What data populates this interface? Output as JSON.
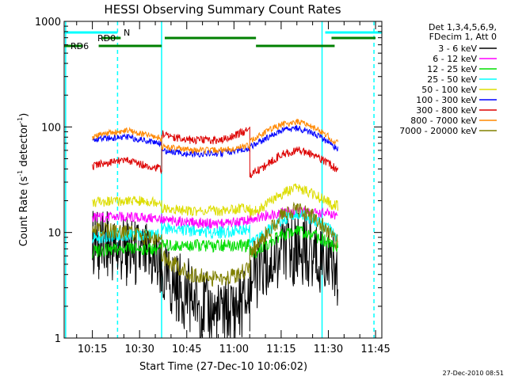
{
  "chart_data": {
    "type": "line",
    "title": "HESSI Observing Summary Count Rates",
    "xlabel": "Start Time (27-Dec-10 10:06:02)",
    "ylabel": "Count Rate (s",
    "ylabel_sup": "-1",
    "ylabel_mid": " detector",
    "ylabel_end": ")",
    "y_scale": "log",
    "ylim": [
      1,
      1000
    ],
    "xlim": [
      "10:06:02",
      "11:47:00"
    ],
    "x_ticks": [
      "10:15",
      "10:30",
      "10:45",
      "11:00",
      "11:15",
      "11:30",
      "11:45"
    ],
    "y_ticks": [
      "1",
      "10",
      "100",
      "1000"
    ],
    "legend_header": [
      "Det 1,3,4,5,6,9,",
      "FDecim 1, Att 0"
    ],
    "legend_position": "right",
    "x_minutes": [
      0,
      9,
      11,
      20,
      31,
      31.01,
      40,
      50,
      59,
      59.01,
      64,
      69,
      74,
      79,
      84,
      85,
      87,
      87.01,
      100
    ],
    "series": [
      {
        "name": "3 - 6 keV",
        "color": "#000000",
        "values": [
          null,
          8,
          7.5,
          6.5,
          5,
          3.8,
          2.5,
          1.5,
          2.5,
          3.5,
          5,
          6.5,
          7,
          6.5,
          5.5,
          5,
          4,
          null,
          null
        ]
      },
      {
        "name": "6 - 12 keV",
        "color": "#ff00ff",
        "values": [
          null,
          14,
          14,
          14,
          13.5,
          13,
          12.5,
          12,
          13,
          13.5,
          14.5,
          15.5,
          16,
          15.5,
          15,
          14.5,
          14,
          null,
          null
        ]
      },
      {
        "name": "12 - 25 keV",
        "color": "#00dd00",
        "values": [
          null,
          6.5,
          6.7,
          7,
          7,
          7.5,
          7.5,
          7.5,
          7.5,
          6,
          7.5,
          9.5,
          10.5,
          9.5,
          8,
          7.5,
          7,
          null,
          null
        ]
      },
      {
        "name": "25 - 50 keV",
        "color": "#00ffff",
        "values": [
          null,
          9,
          9,
          9.5,
          9.5,
          11,
          10.5,
          10,
          11,
          8,
          10,
          13,
          15.5,
          13.5,
          11,
          10,
          9,
          null,
          null
        ]
      },
      {
        "name": "50 - 100 keV",
        "color": "#dddd00",
        "values": [
          null,
          19,
          19.5,
          20,
          19.5,
          17,
          16,
          16,
          17.5,
          15,
          18,
          23,
          27,
          23,
          19.5,
          18.5,
          18,
          null,
          null
        ]
      },
      {
        "name": "100 - 300 keV",
        "color": "#0000ff",
        "values": [
          null,
          75,
          77,
          80,
          70,
          60,
          55,
          56,
          62,
          64,
          77,
          92,
          97,
          88,
          72,
          68,
          62,
          null,
          null
        ]
      },
      {
        "name": "300 - 800 keV",
        "color": "#dd0000",
        "values": [
          null,
          42,
          45,
          48,
          40,
          85,
          75,
          75,
          95,
          35,
          43,
          55,
          60,
          55,
          45,
          42,
          40,
          null,
          null
        ]
      },
      {
        "name": "800 - 7000 keV",
        "color": "#ff8800",
        "values": [
          null,
          80,
          85,
          92,
          78,
          65,
          60,
          60,
          67,
          72,
          90,
          105,
          112,
          100,
          82,
          75,
          70,
          null,
          null
        ]
      },
      {
        "name": "7000 - 20000 keV",
        "color": "#808000",
        "values": [
          null,
          11,
          10.5,
          10,
          8.5,
          6,
          4,
          3.5,
          4.5,
          6,
          9.5,
          14,
          17,
          14,
          10.5,
          9,
          8,
          null,
          null
        ]
      }
    ],
    "status_bars": [
      {
        "label": "N",
        "color": "#00ffff",
        "segments": [
          [
            "10:06:02",
            "10:23:00"
          ],
          [
            "11:29:00",
            "11:47:00"
          ]
        ]
      },
      {
        "label": "RD0",
        "color": "#008000",
        "segments": [
          [
            "10:18:00",
            "10:24:00"
          ],
          [
            "10:38:00",
            "11:07:00"
          ],
          [
            "11:31:00",
            "11:45:00"
          ]
        ]
      },
      {
        "label": "RD6",
        "color": "#008000",
        "segments": [
          [
            "10:06:02",
            "10:12:00"
          ],
          [
            "10:17:00",
            "10:37:00"
          ],
          [
            "11:07:00",
            "11:32:00"
          ]
        ]
      }
    ],
    "vertical_lines": [
      {
        "time": "10:06:30",
        "color": "#00ffff",
        "style": "solid"
      },
      {
        "time": "10:23:00",
        "color": "#00ffff",
        "style": "dashed"
      },
      {
        "time": "10:37:00",
        "color": "#00ffff",
        "style": "solid"
      },
      {
        "time": "11:28:00",
        "color": "#00ffff",
        "style": "solid"
      },
      {
        "time": "11:44:30",
        "color": "#00ffff",
        "style": "dashed"
      }
    ],
    "footer_stamp": "27-Dec-2010 08:51"
  }
}
